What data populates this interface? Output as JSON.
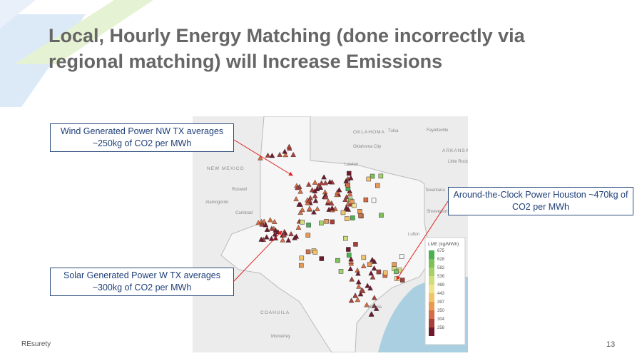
{
  "slide": {
    "title": "Local, Hourly Energy Matching (done incorrectly via regional matching) will Increase Emissions",
    "callouts": [
      "Wind Generated Power NW TX averages ~250kg of CO2 per MWh",
      "Solar Generated Power W TX averages ~300kg of CO2 per MWh",
      "Around-the-Clock Power Houston ~470kg of CO2 per MWh"
    ],
    "map_labels": [
      "OKLAHOMA",
      "Tulsa",
      "Fayetteville",
      "Oklahoma City",
      "ARKANSAS",
      "Little Rock",
      "NEW MEXICO",
      "Lawton",
      "Roswell",
      "Texarkana",
      "Alamogordo",
      "Carlsbad",
      "Shreveport",
      "Lufkin",
      "Victoria",
      "COAHUILA",
      "Monterrey"
    ],
    "legend": {
      "title": "LME (kg/MWh)",
      "ticks": [
        675,
        628,
        582,
        536,
        489,
        443,
        397,
        350,
        304,
        258
      ],
      "colors": [
        "#4caf50",
        "#7cc15a",
        "#a6d06a",
        "#cfdd7c",
        "#efe38c",
        "#f2c46a",
        "#e89a55",
        "#d46c45",
        "#a8403a",
        "#6e1a2c"
      ]
    },
    "footer": "REsurety",
    "page_number": "13"
  }
}
